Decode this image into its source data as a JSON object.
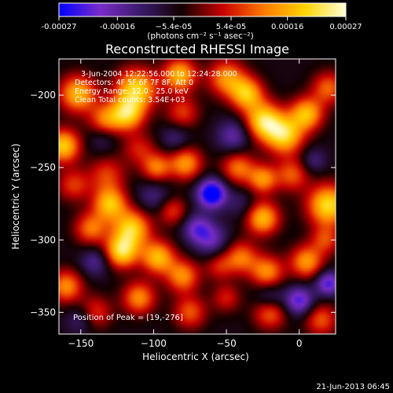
{
  "chart_data": {
    "type": "heatmap",
    "title": "Reconstructed RHESSI Image",
    "xlabel": "Heliocentric X (arcsec)",
    "ylabel": "Heliocentric Y (arcsec)",
    "xlim": [
      -165,
      25
    ],
    "ylim": [
      -365,
      -175
    ],
    "x_ticks": [
      -150,
      -100,
      -50,
      0
    ],
    "y_ticks": [
      -200,
      -250,
      -300,
      -350
    ],
    "colorbar": {
      "range": [
        -0.00027,
        0.00027
      ],
      "tick_values": [
        -0.00027,
        -0.00016,
        -5.4e-05,
        5.4e-05,
        0.00016,
        0.00027
      ],
      "tick_labels": [
        "-0.00027",
        "-0.00016",
        "−5.4e-05",
        "5.4e-05",
        "0.00016",
        "0.00027"
      ],
      "unit_label": "(photons cm⁻² s⁻¹ asec⁻²)",
      "colormap": [
        "#0000ff",
        "#7a2cc8",
        "#3a1a6a",
        "#120000",
        "#c80000",
        "#ff7a00",
        "#ffd400",
        "#ffffd8"
      ]
    },
    "annotations": [
      "3-Jun-2004 12:22:56.000 to 12:24:28.000",
      "Detectors: 4F 5F 6F 7F 8F, Att 0",
      "Energy Range: 12.0 - 25.0 keV",
      "Clean     Total counts: 3.54E+03",
      "Position of Peak = [19,-276]"
    ],
    "peak_position": [
      19,
      -276
    ],
    "intensity_sources": [
      {
        "x": -152,
        "y": -199,
        "v": 0.00022,
        "s": 9
      },
      {
        "x": -133,
        "y": -217,
        "v": 0.00016,
        "s": 8
      },
      {
        "x": -112,
        "y": -196,
        "v": 0.00025,
        "s": 10
      },
      {
        "x": -118,
        "y": -213,
        "v": 0.00022,
        "s": 8
      },
      {
        "x": -82,
        "y": -186,
        "v": 0.00022,
        "s": 8
      },
      {
        "x": -80,
        "y": -212,
        "v": 0.00012,
        "s": 8
      },
      {
        "x": -50,
        "y": -188,
        "v": 0.00018,
        "s": 9
      },
      {
        "x": -36,
        "y": -199,
        "v": 0.00022,
        "s": 8
      },
      {
        "x": -24,
        "y": -218,
        "v": 0.00026,
        "s": 9
      },
      {
        "x": -10,
        "y": -228,
        "v": 0.00024,
        "s": 9
      },
      {
        "x": 5,
        "y": -213,
        "v": 0.00022,
        "s": 8
      },
      {
        "x": 20,
        "y": -195,
        "v": 0.00015,
        "s": 8
      },
      {
        "x": -162,
        "y": -235,
        "v": 0.00024,
        "s": 8
      },
      {
        "x": -155,
        "y": -262,
        "v": 0.00012,
        "s": 8
      },
      {
        "x": -132,
        "y": -255,
        "v": 0.00012,
        "s": 9
      },
      {
        "x": -110,
        "y": -237,
        "v": 0.0001,
        "s": 8
      },
      {
        "x": -98,
        "y": -250,
        "v": 0.00016,
        "s": 7
      },
      {
        "x": -78,
        "y": -247,
        "v": 0.00019,
        "s": 8
      },
      {
        "x": -42,
        "y": -250,
        "v": 0.00016,
        "s": 8
      },
      {
        "x": -25,
        "y": -258,
        "v": 0.00018,
        "s": 7
      },
      {
        "x": -25,
        "y": -285,
        "v": 0.00022,
        "s": 8
      },
      {
        "x": -5,
        "y": -255,
        "v": 0.00014,
        "s": 8
      },
      {
        "x": 20,
        "y": -276,
        "v": 0.00026,
        "s": 10
      },
      {
        "x": -143,
        "y": -292,
        "v": 0.00016,
        "s": 8
      },
      {
        "x": -130,
        "y": -275,
        "v": 0.00022,
        "s": 8
      },
      {
        "x": -115,
        "y": -292,
        "v": 0.00024,
        "s": 9
      },
      {
        "x": -122,
        "y": -308,
        "v": 0.00025,
        "s": 8
      },
      {
        "x": -87,
        "y": -280,
        "v": 0.00012,
        "s": 7
      },
      {
        "x": -97,
        "y": -312,
        "v": 0.00022,
        "s": 8
      },
      {
        "x": -80,
        "y": -325,
        "v": 0.00018,
        "s": 8
      },
      {
        "x": -55,
        "y": -318,
        "v": 0.0001,
        "s": 7
      },
      {
        "x": -40,
        "y": -312,
        "v": 0.00016,
        "s": 8
      },
      {
        "x": -22,
        "y": -322,
        "v": 0.00018,
        "s": 8
      },
      {
        "x": 5,
        "y": -315,
        "v": 0.00019,
        "s": 8
      },
      {
        "x": 18,
        "y": -300,
        "v": 0.00012,
        "s": 7
      },
      {
        "x": -160,
        "y": -332,
        "v": 0.00018,
        "s": 8
      },
      {
        "x": -140,
        "y": -350,
        "v": 0.00012,
        "s": 8
      },
      {
        "x": -110,
        "y": -340,
        "v": 0.00018,
        "s": 8
      },
      {
        "x": -75,
        "y": -350,
        "v": 0.00014,
        "s": 8
      },
      {
        "x": -50,
        "y": -340,
        "v": 0.0001,
        "s": 7
      },
      {
        "x": -20,
        "y": -350,
        "v": 0.00016,
        "s": 8
      },
      {
        "x": 15,
        "y": -355,
        "v": 0.00014,
        "s": 8
      },
      {
        "x": -60,
        "y": -268,
        "v": -0.00027,
        "s": 7
      },
      {
        "x": -70,
        "y": -292,
        "v": -0.00014,
        "s": 7
      },
      {
        "x": -100,
        "y": -270,
        "v": -8e-05,
        "s": 8
      },
      {
        "x": -140,
        "y": -315,
        "v": -0.0001,
        "s": 7
      },
      {
        "x": -45,
        "y": -228,
        "v": -0.00012,
        "s": 8
      },
      {
        "x": -60,
        "y": -300,
        "v": -0.00012,
        "s": 8
      },
      {
        "x": 0,
        "y": -342,
        "v": -0.00018,
        "s": 7
      },
      {
        "x": -20,
        "y": -340,
        "v": -0.0001,
        "s": 7
      },
      {
        "x": 20,
        "y": -330,
        "v": -0.00018,
        "s": 6
      },
      {
        "x": -150,
        "y": -355,
        "v": -8e-05,
        "s": 7
      },
      {
        "x": -85,
        "y": -230,
        "v": -8e-05,
        "s": 7
      },
      {
        "x": 10,
        "y": -245,
        "v": -8e-05,
        "s": 6
      },
      {
        "x": -135,
        "y": -230,
        "v": -6e-05,
        "s": 7
      },
      {
        "x": -40,
        "y": -275,
        "v": -6e-05,
        "s": 7
      }
    ]
  },
  "footer": {
    "date": "21-Jun-2013 06:45"
  }
}
